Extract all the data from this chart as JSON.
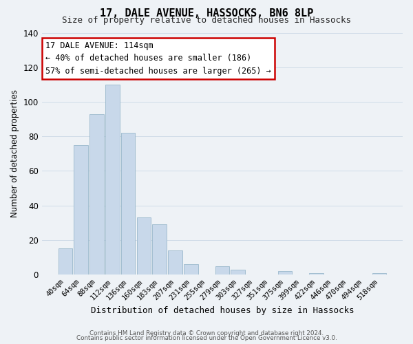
{
  "title": "17, DALE AVENUE, HASSOCKS, BN6 8LP",
  "subtitle": "Size of property relative to detached houses in Hassocks",
  "xlabel": "Distribution of detached houses by size in Hassocks",
  "ylabel": "Number of detached properties",
  "bar_labels": [
    "40sqm",
    "64sqm",
    "88sqm",
    "112sqm",
    "136sqm",
    "160sqm",
    "183sqm",
    "207sqm",
    "231sqm",
    "255sqm",
    "279sqm",
    "303sqm",
    "327sqm",
    "351sqm",
    "375sqm",
    "399sqm",
    "422sqm",
    "446sqm",
    "470sqm",
    "494sqm",
    "518sqm"
  ],
  "bar_values": [
    15,
    75,
    93,
    110,
    82,
    33,
    29,
    14,
    6,
    0,
    5,
    3,
    0,
    0,
    2,
    0,
    1,
    0,
    0,
    0,
    1
  ],
  "bar_color": "#c8d8ea",
  "bar_edge_color": "#9ab8cc",
  "highlight_bar_index": 3,
  "highlight_bar_color": "#7aaac8",
  "ylim": [
    0,
    140
  ],
  "yticks": [
    0,
    20,
    40,
    60,
    80,
    100,
    120,
    140
  ],
  "annotation_title": "17 DALE AVENUE: 114sqm",
  "annotation_line1": "← 40% of detached houses are smaller (186)",
  "annotation_line2": "57% of semi-detached houses are larger (265) →",
  "annotation_box_color": "#ffffff",
  "annotation_border_color": "#cc0000",
  "footer_line1": "Contains HM Land Registry data © Crown copyright and database right 2024.",
  "footer_line2": "Contains public sector information licensed under the Open Government Licence v3.0.",
  "grid_color": "#d0dce8",
  "background_color": "#eef2f6"
}
